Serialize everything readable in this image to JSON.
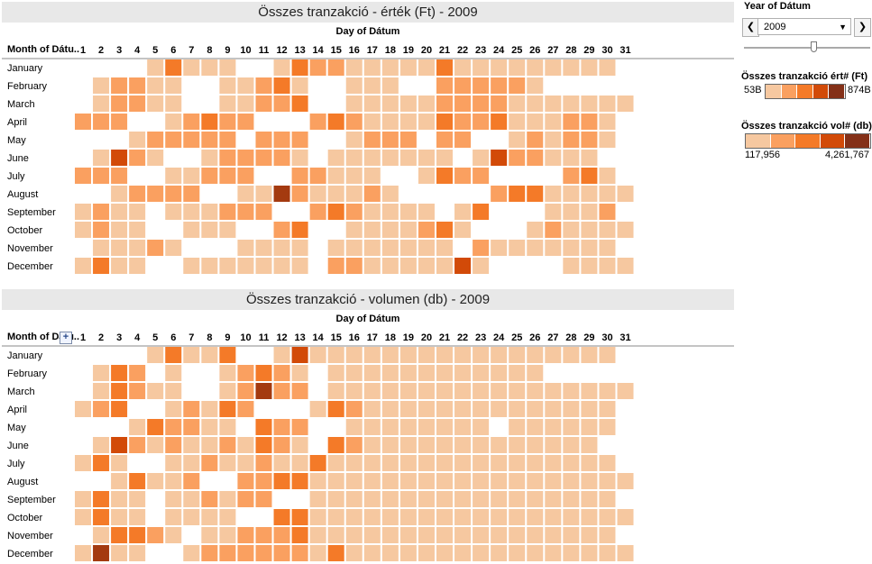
{
  "colors": {
    "scale1": [
      "#f6c8a0",
      "#faa060",
      "#f47a28",
      "#e8580c",
      "#d24a08",
      "#a43a10",
      "#843018"
    ],
    "scale2": [
      "#f6c8a0",
      "#faa060",
      "#f47a28",
      "#e8580c",
      "#d24a08",
      "#a43a10",
      "#843018"
    ],
    "legend1": [
      "#f6c8a0",
      "#faa060",
      "#f47a28",
      "#d24a08",
      "#843018"
    ],
    "legend2": [
      "#f6c8a0",
      "#faa060",
      "#f47a28",
      "#d24a08",
      "#843018"
    ],
    "title_bg": "#e8e8e8",
    "gridline": "#888888"
  },
  "sidebar": {
    "year_label": "Year of Dátum",
    "year_value": "2009",
    "prev_icon": "chevron-left-icon",
    "next_icon": "chevron-right-icon",
    "dropdown_icon": "caret-down-icon",
    "legend1": {
      "title": "Összes tranzakció ért# (Ft)",
      "min": "53B",
      "max": "874B"
    },
    "legend2": {
      "title": "Összes tranzakció vol# (db)",
      "min": "117,956",
      "max": "4,261,767"
    }
  },
  "chart_data": [
    {
      "type": "heatmap",
      "title": "Összes tranzakció - érték (Ft) - 2009",
      "xlabel": "Day of Dátum",
      "ylabel": "Month of Dátu..",
      "x": [
        "1",
        "2",
        "3",
        "4",
        "5",
        "6",
        "7",
        "8",
        "9",
        "10",
        "11",
        "12",
        "13",
        "14",
        "15",
        "16",
        "17",
        "18",
        "19",
        "20",
        "21",
        "22",
        "23",
        "24",
        "25",
        "26",
        "27",
        "28",
        "29",
        "30",
        "31"
      ],
      "y": [
        "January",
        "February",
        "March",
        "April",
        "May",
        "June",
        "July",
        "August",
        "September",
        "October",
        "November",
        "December"
      ],
      "value_levels": 7,
      "values": [
        [
          0,
          0,
          0,
          0,
          1,
          3,
          1,
          1,
          1,
          0,
          0,
          1,
          3,
          2,
          2,
          1,
          1,
          1,
          1,
          1,
          3,
          1,
          1,
          1,
          1,
          1,
          1,
          1,
          1,
          1,
          0
        ],
        [
          0,
          1,
          2,
          2,
          1,
          1,
          0,
          0,
          1,
          1,
          2,
          3,
          1,
          0,
          0,
          1,
          1,
          1,
          0,
          0,
          2,
          2,
          2,
          2,
          2,
          1,
          0,
          0,
          0,
          0,
          0
        ],
        [
          0,
          1,
          2,
          2,
          1,
          1,
          0,
          0,
          1,
          1,
          2,
          2,
          3,
          0,
          0,
          1,
          1,
          1,
          1,
          1,
          2,
          2,
          2,
          2,
          1,
          1,
          1,
          1,
          1,
          1,
          1
        ],
        [
          2,
          2,
          2,
          0,
          0,
          1,
          2,
          3,
          2,
          2,
          0,
          0,
          0,
          2,
          3,
          2,
          1,
          1,
          1,
          1,
          3,
          2,
          2,
          3,
          1,
          1,
          1,
          2,
          2,
          1,
          0
        ],
        [
          0,
          0,
          0,
          1,
          2,
          2,
          2,
          2,
          2,
          0,
          2,
          2,
          2,
          0,
          0,
          1,
          2,
          2,
          2,
          0,
          2,
          2,
          0,
          0,
          1,
          2,
          1,
          2,
          2,
          1,
          0
        ],
        [
          0,
          1,
          5,
          2,
          1,
          0,
          0,
          1,
          2,
          2,
          2,
          2,
          1,
          0,
          1,
          1,
          1,
          1,
          1,
          1,
          1,
          0,
          1,
          5,
          2,
          2,
          1,
          1,
          1,
          0,
          0
        ],
        [
          2,
          2,
          2,
          0,
          0,
          1,
          1,
          2,
          2,
          2,
          0,
          0,
          2,
          2,
          1,
          1,
          1,
          0,
          0,
          1,
          3,
          2,
          2,
          0,
          0,
          0,
          0,
          2,
          3,
          1,
          0
        ],
        [
          0,
          0,
          1,
          2,
          2,
          2,
          2,
          0,
          0,
          1,
          1,
          6,
          2,
          1,
          1,
          1,
          2,
          1,
          0,
          0,
          0,
          0,
          0,
          2,
          3,
          3,
          1,
          1,
          1,
          1,
          1
        ],
        [
          1,
          2,
          1,
          1,
          0,
          1,
          1,
          1,
          2,
          2,
          2,
          0,
          0,
          2,
          3,
          2,
          1,
          1,
          1,
          1,
          0,
          1,
          3,
          0,
          0,
          0,
          1,
          1,
          1,
          2,
          0
        ],
        [
          1,
          2,
          1,
          1,
          0,
          0,
          1,
          1,
          1,
          0,
          0,
          2,
          3,
          0,
          0,
          1,
          1,
          1,
          1,
          2,
          3,
          1,
          0,
          0,
          0,
          1,
          2,
          1,
          1,
          1,
          1
        ],
        [
          0,
          1,
          1,
          1,
          2,
          1,
          0,
          0,
          0,
          1,
          1,
          1,
          1,
          0,
          1,
          1,
          1,
          1,
          1,
          1,
          1,
          0,
          2,
          1,
          1,
          1,
          1,
          1,
          1,
          1,
          0
        ],
        [
          1,
          3,
          1,
          1,
          0,
          0,
          1,
          1,
          1,
          1,
          1,
          1,
          1,
          0,
          2,
          2,
          1,
          1,
          1,
          1,
          1,
          5,
          1,
          0,
          0,
          0,
          0,
          1,
          1,
          1,
          1
        ]
      ]
    },
    {
      "type": "heatmap",
      "title": "Összes tranzakció - volumen (db) - 2009",
      "xlabel": "Day of Dátum",
      "ylabel": "Month of Dátu..",
      "x": [
        "1",
        "2",
        "3",
        "4",
        "5",
        "6",
        "7",
        "8",
        "9",
        "10",
        "11",
        "12",
        "13",
        "14",
        "15",
        "16",
        "17",
        "18",
        "19",
        "20",
        "21",
        "22",
        "23",
        "24",
        "25",
        "26",
        "27",
        "28",
        "29",
        "30",
        "31"
      ],
      "y": [
        "January",
        "February",
        "March",
        "April",
        "May",
        "June",
        "July",
        "August",
        "September",
        "October",
        "November",
        "December"
      ],
      "value_levels": 7,
      "values": [
        [
          0,
          0,
          0,
          0,
          1,
          3,
          1,
          1,
          3,
          0,
          0,
          1,
          5,
          1,
          1,
          1,
          1,
          1,
          1,
          1,
          1,
          1,
          1,
          1,
          1,
          1,
          1,
          1,
          1,
          1,
          0
        ],
        [
          0,
          1,
          3,
          2,
          0,
          1,
          0,
          0,
          1,
          2,
          3,
          2,
          1,
          0,
          1,
          1,
          1,
          1,
          1,
          1,
          1,
          1,
          1,
          1,
          1,
          1,
          0,
          0,
          0,
          0,
          0
        ],
        [
          0,
          1,
          3,
          2,
          1,
          1,
          0,
          0,
          1,
          2,
          6,
          2,
          2,
          0,
          1,
          1,
          1,
          1,
          1,
          1,
          1,
          1,
          1,
          1,
          1,
          1,
          1,
          1,
          1,
          1,
          1
        ],
        [
          1,
          2,
          3,
          0,
          0,
          1,
          2,
          1,
          3,
          2,
          0,
          0,
          0,
          1,
          3,
          2,
          1,
          1,
          1,
          1,
          1,
          1,
          1,
          1,
          1,
          1,
          1,
          1,
          1,
          1,
          0
        ],
        [
          0,
          0,
          0,
          1,
          3,
          2,
          2,
          1,
          1,
          0,
          3,
          2,
          2,
          0,
          0,
          1,
          1,
          1,
          1,
          1,
          1,
          1,
          1,
          0,
          1,
          1,
          1,
          1,
          1,
          1,
          0
        ],
        [
          0,
          1,
          5,
          2,
          1,
          2,
          1,
          1,
          2,
          1,
          3,
          2,
          1,
          0,
          3,
          2,
          1,
          1,
          1,
          1,
          1,
          1,
          1,
          1,
          1,
          1,
          1,
          1,
          1,
          0,
          0
        ],
        [
          1,
          3,
          1,
          0,
          0,
          1,
          1,
          2,
          1,
          1,
          2,
          1,
          1,
          3,
          1,
          1,
          1,
          1,
          1,
          1,
          1,
          1,
          1,
          1,
          1,
          1,
          1,
          1,
          1,
          1,
          0
        ],
        [
          0,
          0,
          1,
          3,
          1,
          1,
          2,
          0,
          0,
          2,
          2,
          3,
          3,
          1,
          1,
          1,
          1,
          1,
          1,
          1,
          1,
          1,
          1,
          1,
          1,
          1,
          1,
          1,
          1,
          1,
          1
        ],
        [
          1,
          3,
          1,
          1,
          0,
          1,
          1,
          2,
          1,
          2,
          2,
          0,
          0,
          1,
          1,
          1,
          1,
          1,
          1,
          1,
          1,
          1,
          1,
          1,
          1,
          1,
          1,
          1,
          1,
          1,
          0
        ],
        [
          1,
          3,
          1,
          1,
          0,
          1,
          1,
          1,
          1,
          0,
          0,
          3,
          3,
          1,
          1,
          1,
          1,
          1,
          1,
          1,
          1,
          1,
          1,
          1,
          1,
          1,
          1,
          1,
          1,
          1,
          1
        ],
        [
          0,
          1,
          3,
          3,
          2,
          1,
          0,
          1,
          1,
          2,
          2,
          2,
          3,
          1,
          1,
          1,
          1,
          1,
          1,
          1,
          1,
          1,
          1,
          1,
          1,
          1,
          1,
          1,
          1,
          1,
          0
        ],
        [
          1,
          6,
          1,
          1,
          0,
          0,
          1,
          2,
          2,
          2,
          2,
          2,
          2,
          1,
          3,
          1,
          1,
          1,
          1,
          1,
          1,
          1,
          1,
          1,
          1,
          1,
          1,
          1,
          1,
          1,
          1
        ]
      ]
    }
  ]
}
